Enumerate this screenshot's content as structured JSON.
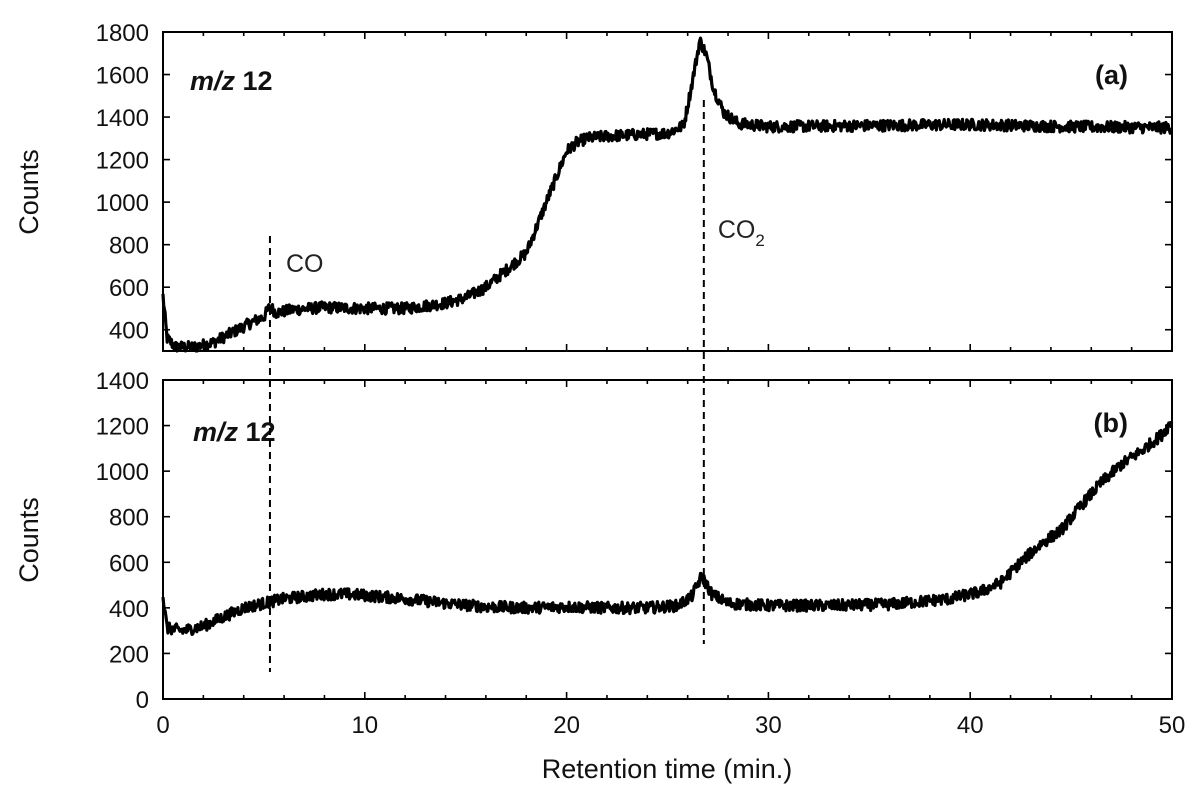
{
  "chart_data": [
    {
      "type": "line",
      "panel_label": "(a)",
      "ion_label": "m/z 12",
      "ylabel": "Counts",
      "xlim": [
        0,
        50
      ],
      "ylim": [
        300,
        1800
      ],
      "yticks": [
        400,
        600,
        800,
        1000,
        1200,
        1400,
        1600,
        1800
      ],
      "series": [
        {
          "points": [
            [
              0,
              560
            ],
            [
              0.2,
              360
            ],
            [
              0.6,
              320
            ],
            [
              1.5,
              318
            ],
            [
              2.5,
              340
            ],
            [
              3.5,
              390
            ],
            [
              4.5,
              440
            ],
            [
              5.0,
              460
            ],
            [
              5.3,
              510
            ],
            [
              5.6,
              480
            ],
            [
              6.5,
              495
            ],
            [
              8,
              505
            ],
            [
              10,
              500
            ],
            [
              12,
              500
            ],
            [
              14,
              525
            ],
            [
              15,
              550
            ],
            [
              16,
              600
            ],
            [
              17,
              680
            ],
            [
              18,
              760
            ],
            [
              19,
              1000
            ],
            [
              19.5,
              1120
            ],
            [
              20,
              1240
            ],
            [
              20.5,
              1280
            ],
            [
              21,
              1300
            ],
            [
              22,
              1310
            ],
            [
              23,
              1315
            ],
            [
              24,
              1320
            ],
            [
              25,
              1325
            ],
            [
              25.8,
              1360
            ],
            [
              26.2,
              1550
            ],
            [
              26.6,
              1760
            ],
            [
              26.9,
              1700
            ],
            [
              27.3,
              1530
            ],
            [
              27.8,
              1420
            ],
            [
              28.5,
              1370
            ],
            [
              30,
              1355
            ],
            [
              35,
              1360
            ],
            [
              40,
              1365
            ],
            [
              45,
              1355
            ],
            [
              50,
              1350
            ]
          ]
        }
      ],
      "annotations": [
        {
          "text": "CO",
          "x": 5.3
        },
        {
          "text": "CO",
          "subscript": "2",
          "x": 26.8
        }
      ]
    },
    {
      "type": "line",
      "panel_label": "(b)",
      "ion_label": "m/z 12",
      "xlabel": "Retention time (min.)",
      "ylabel": "Counts",
      "xlim": [
        0,
        50
      ],
      "ylim": [
        0,
        1400
      ],
      "xticks": [
        0,
        10,
        20,
        30,
        40,
        50
      ],
      "yticks": [
        0,
        200,
        400,
        600,
        800,
        1000,
        1200,
        1400
      ],
      "series": [
        {
          "points": [
            [
              0,
              450
            ],
            [
              0.2,
              310
            ],
            [
              1,
              300
            ],
            [
              2,
              320
            ],
            [
              3,
              360
            ],
            [
              4,
              400
            ],
            [
              5,
              420
            ],
            [
              6,
              440
            ],
            [
              7,
              450
            ],
            [
              8,
              460
            ],
            [
              9,
              460
            ],
            [
              10,
              455
            ],
            [
              12,
              440
            ],
            [
              14,
              420
            ],
            [
              16,
              405
            ],
            [
              18,
              400
            ],
            [
              20,
              405
            ],
            [
              22,
              400
            ],
            [
              24,
              400
            ],
            [
              25.5,
              410
            ],
            [
              26.2,
              450
            ],
            [
              26.7,
              540
            ],
            [
              27.2,
              460
            ],
            [
              28,
              420
            ],
            [
              30,
              410
            ],
            [
              33,
              410
            ],
            [
              36,
              415
            ],
            [
              39,
              440
            ],
            [
              40.5,
              470
            ],
            [
              41.5,
              510
            ],
            [
              42.5,
              600
            ],
            [
              43.5,
              680
            ],
            [
              44.5,
              740
            ],
            [
              45.5,
              850
            ],
            [
              46.5,
              950
            ],
            [
              47.5,
              1030
            ],
            [
              48.5,
              1090
            ],
            [
              49.5,
              1160
            ],
            [
              50,
              1220
            ]
          ]
        }
      ]
    }
  ]
}
